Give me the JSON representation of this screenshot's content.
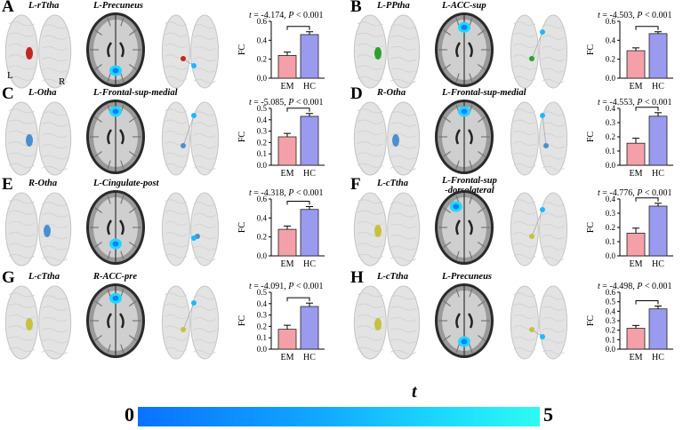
{
  "panels": [
    {
      "id": "A",
      "letter": "A",
      "region1": "L-rTtha",
      "region2": "L-Precuneus",
      "t": "-4.174",
      "p": "0.001",
      "em": 0.24,
      "hc": 0.46,
      "em_err": 0.035,
      "hc_err": 0.03,
      "ymax": 0.6,
      "ticks": [
        "0.0",
        "0.2",
        "0.4",
        "0.6"
      ],
      "seed_side": "L",
      "seed_color": "#c0281f",
      "tgt": "precuneus"
    },
    {
      "id": "B",
      "letter": "B",
      "region1": "L-PPtha",
      "region2": "L-ACC-sup",
      "t": "-4.503",
      "p": "0.001",
      "em": 0.29,
      "hc": 0.47,
      "em_err": 0.03,
      "hc_err": 0.02,
      "ymax": 0.6,
      "ticks": [
        "0.0",
        "0.2",
        "0.4",
        "0.6"
      ],
      "seed_side": "L",
      "seed_color": "#2ca02c",
      "tgt": "acc"
    },
    {
      "id": "C",
      "letter": "C",
      "region1": "L-Otha",
      "region2": "L-Frontal-sup-medial",
      "t": "-5.085",
      "p": "0.001",
      "em": 0.25,
      "hc": 0.43,
      "em_err": 0.03,
      "hc_err": 0.025,
      "ymax": 0.5,
      "ticks": [
        "0.0",
        "0.1",
        "0.2",
        "0.3",
        "0.4",
        "0.5"
      ],
      "seed_side": "L",
      "seed_color": "#4a90d0",
      "tgt": "frontal"
    },
    {
      "id": "D",
      "letter": "D",
      "region1": "R-Otha",
      "region2": "L-Frontal-sup-medial",
      "t": "-4.553",
      "p": "0.001",
      "em": 0.155,
      "hc": 0.345,
      "em_err": 0.035,
      "hc_err": 0.025,
      "ymax": 0.4,
      "ticks": [
        "0.0",
        "0.1",
        "0.2",
        "0.3",
        "0.4"
      ],
      "seed_side": "R",
      "seed_color": "#4a90d0",
      "tgt": "frontal"
    },
    {
      "id": "E",
      "letter": "E",
      "region1": "R-Otha",
      "region2": "L-Cingulate-post",
      "t": "-4.318",
      "p": "0.001",
      "em": 0.28,
      "hc": 0.49,
      "em_err": 0.035,
      "hc_err": 0.03,
      "ymax": 0.6,
      "ticks": [
        "0.0",
        "0.2",
        "0.4",
        "0.6"
      ],
      "seed_side": "R",
      "seed_color": "#4a90d0",
      "tgt": "posterior"
    },
    {
      "id": "F",
      "letter": "F",
      "region1": "L-cTtha",
      "region2": "L-Frontal-sup\n-dorsolateral",
      "t": "-4.776",
      "p": "0.001",
      "em": 0.16,
      "hc": 0.35,
      "em_err": 0.035,
      "hc_err": 0.02,
      "ymax": 0.4,
      "ticks": [
        "0.0",
        "0.1",
        "0.2",
        "0.3",
        "0.4"
      ],
      "seed_side": "L",
      "seed_color": "#c8c040",
      "tgt": "dlpfc"
    },
    {
      "id": "G",
      "letter": "G",
      "region1": "L-cTtha",
      "region2": "R-ACC-pre",
      "t": "-4.091",
      "p": "0.001",
      "em": 0.175,
      "hc": 0.375,
      "em_err": 0.035,
      "hc_err": 0.03,
      "ymax": 0.5,
      "ticks": [
        "0.0",
        "0.1",
        "0.2",
        "0.3",
        "0.4",
        "0.5"
      ],
      "seed_side": "L",
      "seed_color": "#c8c040",
      "tgt": "acc"
    },
    {
      "id": "H",
      "letter": "H",
      "region1": "L-cTtha",
      "region2": "L-Precuneus",
      "t": "-4.498",
      "p": "0.001",
      "em": 0.22,
      "hc": 0.425,
      "em_err": 0.03,
      "hc_err": 0.03,
      "ymax": 0.6,
      "ticks": [
        "0.0",
        "0.1",
        "0.2",
        "0.3",
        "0.4",
        "0.5",
        "0.6"
      ],
      "seed_side": "L",
      "seed_color": "#c8c040",
      "tgt": "precuneus"
    }
  ],
  "chart_data": [
    {
      "type": "bar",
      "panel": "A",
      "categories": [
        "EM",
        "HC"
      ],
      "values": [
        0.24,
        0.46
      ],
      "ylabel": "FC",
      "ylim": [
        0,
        0.6
      ],
      "annotation": "t = -4.174, P < 0.001"
    },
    {
      "type": "bar",
      "panel": "B",
      "categories": [
        "EM",
        "HC"
      ],
      "values": [
        0.29,
        0.47
      ],
      "ylabel": "FC",
      "ylim": [
        0,
        0.6
      ],
      "annotation": "t = -4.503, P < 0.001"
    },
    {
      "type": "bar",
      "panel": "C",
      "categories": [
        "EM",
        "HC"
      ],
      "values": [
        0.25,
        0.43
      ],
      "ylabel": "FC",
      "ylim": [
        0,
        0.5
      ],
      "annotation": "t = -5.085, P < 0.001"
    },
    {
      "type": "bar",
      "panel": "D",
      "categories": [
        "EM",
        "HC"
      ],
      "values": [
        0.155,
        0.345
      ],
      "ylabel": "FC",
      "ylim": [
        0,
        0.4
      ],
      "annotation": "t = -4.553, P < 0.001"
    },
    {
      "type": "bar",
      "panel": "E",
      "categories": [
        "EM",
        "HC"
      ],
      "values": [
        0.28,
        0.49
      ],
      "ylabel": "FC",
      "ylim": [
        0,
        0.6
      ],
      "annotation": "t = -4.318, P < 0.001"
    },
    {
      "type": "bar",
      "panel": "F",
      "categories": [
        "EM",
        "HC"
      ],
      "values": [
        0.16,
        0.35
      ],
      "ylabel": "FC",
      "ylim": [
        0,
        0.4
      ],
      "annotation": "t = -4.776, P < 0.001"
    },
    {
      "type": "bar",
      "panel": "G",
      "categories": [
        "EM",
        "HC"
      ],
      "values": [
        0.175,
        0.375
      ],
      "ylabel": "FC",
      "ylim": [
        0,
        0.5
      ],
      "annotation": "t = -4.091, P < 0.001"
    },
    {
      "type": "bar",
      "panel": "H",
      "categories": [
        "EM",
        "HC"
      ],
      "values": [
        0.22,
        0.425
      ],
      "ylabel": "FC",
      "ylim": [
        0,
        0.6
      ],
      "annotation": "t = -4.498, P < 0.001"
    }
  ],
  "labels": {
    "fc": "FC",
    "em": "EM",
    "hc": "HC",
    "t_symbol": "t",
    "p_symbol": "P",
    "left": "L",
    "right": "R"
  },
  "colorbar": {
    "title": "t",
    "min": "0",
    "max": "5"
  },
  "colors": {
    "em_bar": "#f4a0a8",
    "hc_bar": "#9a9aee",
    "activation": "#1ed8ff"
  }
}
